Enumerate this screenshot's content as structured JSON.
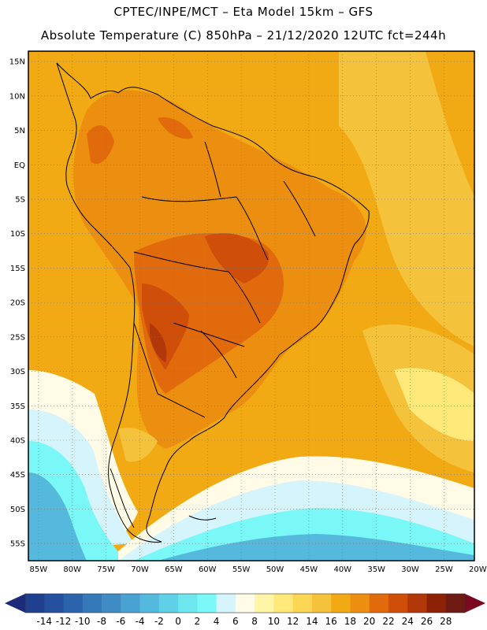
{
  "header": {
    "line1": "CPTEC/INPE/MCT –  Eta Model 15km – GFS",
    "line2": "Absolute Temperature (C) 850hPa – 21/12/2020 12UTC fct=244h"
  },
  "map": {
    "lat_labels": [
      "15N",
      "10N",
      "5N",
      "EQ",
      "5S",
      "10S",
      "15S",
      "20S",
      "25S",
      "30S",
      "35S",
      "40S",
      "45S",
      "50S",
      "55S"
    ],
    "lon_labels": [
      "85W",
      "80W",
      "75W",
      "70W",
      "65W",
      "60W",
      "55W",
      "50W",
      "45W",
      "40W",
      "35W",
      "30W",
      "25W",
      "20W"
    ],
    "lat_range": [
      -57.5,
      16.5
    ],
    "lon_range": [
      -86.5,
      -20.5
    ]
  },
  "colorbar": {
    "ticks": [
      "-14",
      "-12",
      "-10",
      "-8",
      "-6",
      "-4",
      "-2",
      "0",
      "2",
      "4",
      "6",
      "8",
      "10",
      "12",
      "14",
      "16",
      "18",
      "20",
      "22",
      "24",
      "26",
      "28"
    ],
    "colors": [
      "#1f3f8f",
      "#24509e",
      "#2b64ad",
      "#3679b8",
      "#3f8cc4",
      "#4aa2d2",
      "#55b9de",
      "#5fd0e6",
      "#6ee6ee",
      "#7af7f7",
      "#d6f4fb",
      "#fffbe6",
      "#fff5a6",
      "#ffe97a",
      "#fbd655",
      "#f5c23b",
      "#f2aa14",
      "#ec8f10",
      "#e06a0c",
      "#cf4f0a",
      "#b2380a",
      "#8c2106",
      "#6f1a12"
    ],
    "under_color": "#1b2b7a",
    "over_color": "#7a0820"
  }
}
